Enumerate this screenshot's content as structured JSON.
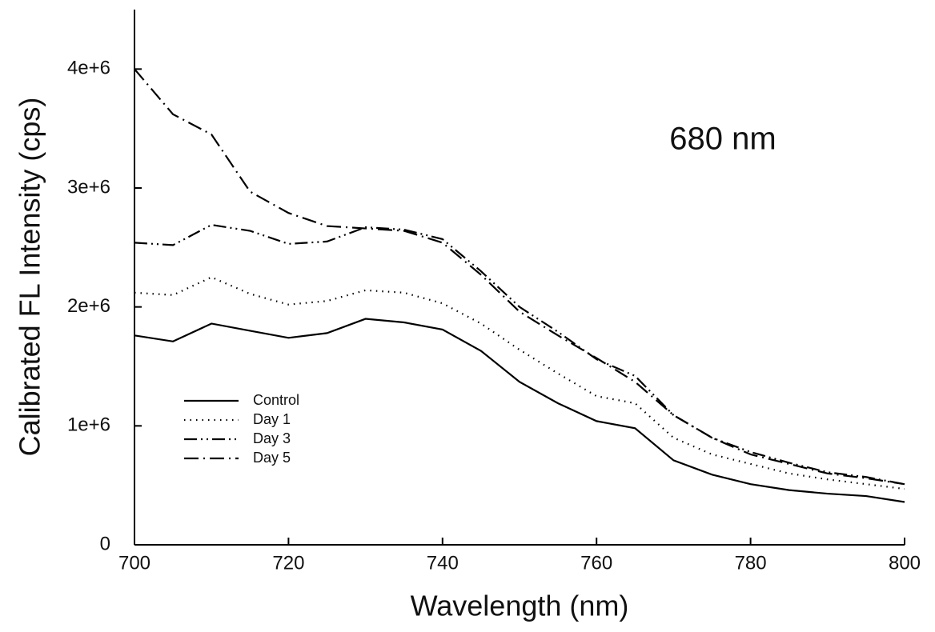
{
  "chart_data": {
    "type": "line",
    "annotation": "680 nm",
    "xlabel": "Wavelength (nm)",
    "ylabel": "Calibrated FL Intensity (cps)",
    "x": [
      700,
      705,
      710,
      715,
      720,
      725,
      730,
      735,
      740,
      745,
      750,
      755,
      760,
      765,
      770,
      775,
      780,
      785,
      790,
      795,
      800
    ],
    "series": [
      {
        "name": "Control",
        "color": "#000000",
        "style": "solid",
        "values": [
          1760000,
          1710000,
          1860000,
          1800000,
          1740000,
          1780000,
          1900000,
          1870000,
          1810000,
          1630000,
          1370000,
          1190000,
          1040000,
          980000,
          710000,
          590000,
          510000,
          460000,
          430000,
          410000,
          360000
        ]
      },
      {
        "name": "Day 1",
        "color": "#000000",
        "style": "dotted",
        "values": [
          2120000,
          2100000,
          2250000,
          2110000,
          2020000,
          2050000,
          2140000,
          2120000,
          2030000,
          1860000,
          1640000,
          1440000,
          1250000,
          1190000,
          900000,
          760000,
          680000,
          600000,
          550000,
          510000,
          470000
        ]
      },
      {
        "name": "Day 3",
        "color": "#000000",
        "style": "dash-dot-dot",
        "values": [
          2540000,
          2520000,
          2690000,
          2640000,
          2530000,
          2550000,
          2670000,
          2650000,
          2570000,
          2300000,
          2000000,
          1790000,
          1560000,
          1420000,
          1090000,
          900000,
          780000,
          690000,
          610000,
          570000,
          510000
        ]
      },
      {
        "name": "Day 5",
        "color": "#000000",
        "style": "dash-dot",
        "values": [
          4000000,
          3620000,
          3450000,
          2970000,
          2790000,
          2680000,
          2660000,
          2640000,
          2540000,
          2270000,
          1960000,
          1760000,
          1570000,
          1370000,
          1090000,
          900000,
          760000,
          680000,
          600000,
          560000,
          510000
        ]
      }
    ],
    "xlim": [
      700,
      800
    ],
    "xticks": [
      700,
      720,
      740,
      760,
      780,
      800
    ],
    "ylim": [
      0,
      4500000
    ],
    "yticks": [
      0,
      {
        "value": 1000000,
        "label": "1e+6"
      },
      {
        "value": 2000000,
        "label": "2e+6"
      },
      {
        "value": 3000000,
        "label": "3e+6"
      },
      {
        "value": 4000000,
        "label": "4e+6"
      }
    ],
    "grid": false,
    "legend": "lower left"
  }
}
